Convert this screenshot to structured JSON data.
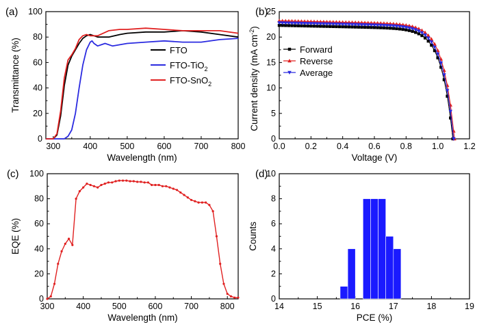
{
  "chart_data": [
    {
      "panel": "(a)",
      "type": "line",
      "xlabel": "Wavelength (nm)",
      "ylabel": "Transmittance (%)",
      "xlim": [
        280,
        800
      ],
      "ylim": [
        0,
        100
      ],
      "xticks": [
        300,
        400,
        500,
        600,
        700,
        800
      ],
      "yticks": [
        0,
        20,
        40,
        60,
        80,
        100
      ],
      "legend": "right",
      "series": [
        {
          "name": "FTO",
          "label_main": "FTO",
          "label_sub": "",
          "color": "#000000",
          "x": [
            280,
            300,
            310,
            320,
            330,
            340,
            350,
            360,
            370,
            380,
            390,
            400,
            410,
            420,
            430,
            450,
            480,
            500,
            550,
            600,
            650,
            700,
            750,
            800
          ],
          "y": [
            0,
            0,
            3,
            18,
            42,
            58,
            65,
            70,
            75,
            79,
            81,
            82,
            81,
            80,
            80,
            80,
            82,
            83,
            84,
            84,
            85,
            84,
            82,
            80
          ]
        },
        {
          "name": "FTO-TiO2",
          "label_main": "FTO-TiO",
          "label_sub": "2",
          "color": "#2a2ae0",
          "x": [
            280,
            330,
            340,
            350,
            360,
            370,
            380,
            390,
            400,
            405,
            410,
            420,
            430,
            440,
            460,
            500,
            550,
            600,
            650,
            700,
            750,
            800
          ],
          "y": [
            0,
            0,
            2,
            7,
            20,
            40,
            58,
            70,
            76,
            77,
            75,
            73,
            74,
            75,
            73,
            75,
            76,
            77,
            76,
            76,
            78,
            79
          ]
        },
        {
          "name": "FTO-SnO2",
          "label_main": "FTO-SnO",
          "label_sub": "2",
          "color": "#e02020",
          "x": [
            280,
            300,
            310,
            320,
            330,
            340,
            350,
            360,
            370,
            380,
            390,
            400,
            420,
            450,
            480,
            500,
            550,
            600,
            650,
            700,
            750,
            800
          ],
          "y": [
            0,
            0,
            4,
            22,
            48,
            62,
            66,
            71,
            78,
            81,
            82,
            81,
            81,
            85,
            86,
            86,
            87,
            86,
            85,
            85,
            85,
            83
          ]
        }
      ]
    },
    {
      "panel": "(b)",
      "type": "line",
      "xlabel": "Voltage (V)",
      "ylabel_main": "Current density (mA cm",
      "ylabel_sup": "-2",
      "ylabel_end": ")",
      "xlim": [
        0,
        1.2
      ],
      "ylim": [
        0,
        25
      ],
      "xticks": [
        "0.0",
        "0.2",
        "0.4",
        "0.6",
        "0.8",
        "1.0",
        "1.2"
      ],
      "yticks": [
        0,
        5,
        10,
        15,
        20,
        25
      ],
      "legend": "left",
      "series": [
        {
          "name": "Forward",
          "color": "#000000",
          "marker": "square",
          "jsc": 22.3,
          "jmp_v": 0.72,
          "voc": 1.095
        },
        {
          "name": "Reverse",
          "color": "#e02020",
          "marker": "triangle-up",
          "jsc": 23.2,
          "jmp_v": 0.8,
          "voc": 1.105
        },
        {
          "name": "Average",
          "color": "#2a2ae0",
          "marker": "triangle-down",
          "jsc": 22.8,
          "jmp_v": 0.76,
          "voc": 1.1
        }
      ]
    },
    {
      "panel": "(c)",
      "type": "line",
      "xlabel": "Wavelength (nm)",
      "ylabel": "EQE (%)",
      "xlim": [
        300,
        830
      ],
      "ylim": [
        0,
        100
      ],
      "xticks": [
        300,
        400,
        500,
        600,
        700,
        800
      ],
      "yticks": [
        0,
        20,
        40,
        60,
        80,
        100
      ],
      "series": [
        {
          "name": "EQE",
          "color": "#e02020",
          "x": [
            300,
            310,
            320,
            330,
            340,
            350,
            360,
            370,
            380,
            390,
            400,
            410,
            420,
            430,
            440,
            450,
            460,
            470,
            480,
            490,
            500,
            510,
            520,
            530,
            540,
            550,
            560,
            570,
            580,
            590,
            600,
            610,
            620,
            630,
            640,
            650,
            660,
            670,
            680,
            690,
            700,
            710,
            720,
            730,
            740,
            750,
            760,
            770,
            780,
            790,
            800,
            810,
            820,
            830
          ],
          "y": [
            0,
            2,
            12,
            28,
            38,
            44,
            48,
            43,
            80,
            86,
            89,
            92,
            91,
            90,
            89,
            91,
            92,
            93,
            93,
            94,
            94.5,
            94.5,
            94.5,
            94,
            94,
            93.5,
            93.5,
            93,
            93,
            91,
            91,
            91,
            90,
            90,
            89,
            88,
            87,
            85,
            83,
            81,
            79,
            78,
            77,
            77,
            77,
            75,
            70,
            50,
            28,
            12,
            4,
            2,
            1,
            1
          ]
        }
      ]
    },
    {
      "panel": "(d)",
      "type": "bar",
      "xlabel": "PCE (%)",
      "ylabel": "Counts",
      "xlim": [
        14,
        19
      ],
      "ylim": [
        0,
        10
      ],
      "xticks": [
        14,
        15,
        16,
        17,
        18,
        19
      ],
      "yticks": [
        0,
        2,
        4,
        6,
        8,
        10
      ],
      "bin_width": 0.2,
      "bin_starts": [
        15.6,
        15.8,
        16.2,
        16.4,
        16.6,
        16.8,
        17.0
      ],
      "bin_ends": [
        15.8,
        16.0,
        16.4,
        16.6,
        16.8,
        17.0,
        17.2
      ],
      "values": [
        1,
        4,
        8,
        8,
        8,
        5,
        4
      ],
      "bars": [
        {
          "x0": 15.6,
          "x1": 15.8,
          "count": 1
        },
        {
          "x0": 15.8,
          "x1": 16.0,
          "count": 4
        },
        {
          "x0": 16.2,
          "x1": 16.4,
          "count": 8
        },
        {
          "x0": 16.4,
          "x1": 16.6,
          "count": 8
        },
        {
          "x0": 16.6,
          "x1": 16.8,
          "count": 8
        },
        {
          "x0": 16.8,
          "x1": 17.0,
          "count": 5
        },
        {
          "x0": 17.0,
          "x1": 17.2,
          "count": 4
        }
      ],
      "color": "#1a1aff"
    }
  ]
}
